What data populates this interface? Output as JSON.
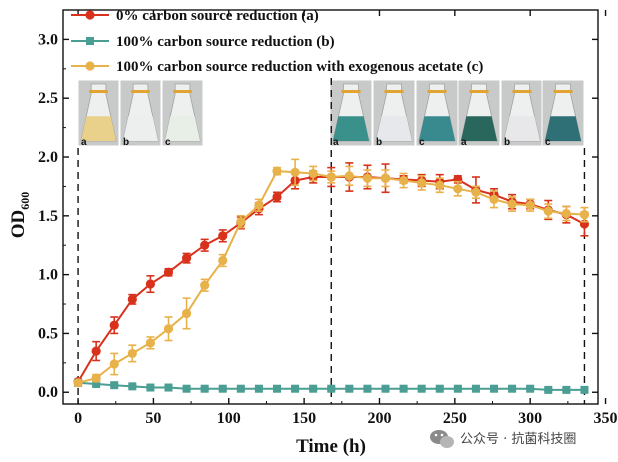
{
  "chart_data": {
    "type": "line",
    "xlabel": "Time (h)",
    "ylabel": "OD",
    "ylabel_sub": "600",
    "xlim": [
      -10,
      345
    ],
    "ylim": [
      -0.1,
      3.25
    ],
    "xticks": [
      0,
      50,
      100,
      150,
      200,
      250,
      300,
      350
    ],
    "yticks": [
      0.0,
      0.5,
      1.0,
      1.5,
      2.0,
      2.5,
      3.0
    ],
    "x_tick_labels": [
      "0",
      "50",
      "100",
      "150",
      "200",
      "250",
      "300",
      "350"
    ],
    "y_tick_labels": [
      "0.0",
      "0.5",
      "1.0",
      "1.5",
      "2.0",
      "2.5",
      "3.0"
    ],
    "legend_position": "top-left",
    "grid": false,
    "vlines_dashed_x": [
      0,
      168,
      336
    ],
    "series": [
      {
        "name": "0%  carbon source reduction (a)",
        "color": "#d8321c",
        "marker": "circle",
        "x": [
          0,
          12,
          24,
          36,
          48,
          60,
          72,
          84,
          96,
          108,
          120,
          132,
          144,
          156,
          168,
          180,
          192,
          204,
          216,
          228,
          240,
          252,
          264,
          276,
          288,
          300,
          312,
          324,
          336
        ],
        "y": [
          0.09,
          0.35,
          0.57,
          0.79,
          0.92,
          1.02,
          1.14,
          1.25,
          1.33,
          1.44,
          1.56,
          1.66,
          1.8,
          1.83,
          1.83,
          1.83,
          1.83,
          1.82,
          1.81,
          1.8,
          1.79,
          1.81,
          1.72,
          1.68,
          1.62,
          1.6,
          1.55,
          1.51,
          1.43
        ],
        "err": [
          0.02,
          0.08,
          0.07,
          0.04,
          0.07,
          0.03,
          0.04,
          0.05,
          0.05,
          0.05,
          0.05,
          0.04,
          0.07,
          0.05,
          0.08,
          0.12,
          0.1,
          0.12,
          0.03,
          0.05,
          0.06,
          0.03,
          0.11,
          0.05,
          0.06,
          0.04,
          0.08,
          0.07,
          0.1
        ]
      },
      {
        "name": "100%  carbon source reduction (b)",
        "color": "#4a9e94",
        "marker": "square",
        "x": [
          0,
          12,
          24,
          36,
          48,
          60,
          72,
          84,
          96,
          108,
          120,
          132,
          144,
          156,
          168,
          180,
          192,
          204,
          216,
          228,
          240,
          252,
          264,
          276,
          288,
          300,
          312,
          324,
          336
        ],
        "y": [
          0.08,
          0.07,
          0.06,
          0.05,
          0.04,
          0.04,
          0.03,
          0.03,
          0.03,
          0.03,
          0.03,
          0.03,
          0.03,
          0.03,
          0.03,
          0.03,
          0.03,
          0.03,
          0.03,
          0.03,
          0.03,
          0.03,
          0.03,
          0.03,
          0.03,
          0.03,
          0.02,
          0.02,
          0.02
        ],
        "err": [
          0.01,
          0.01,
          0.01,
          0.01,
          0.01,
          0.01,
          0.01,
          0.01,
          0.01,
          0.01,
          0.01,
          0.01,
          0.01,
          0.01,
          0.01,
          0.01,
          0.01,
          0.01,
          0.01,
          0.01,
          0.01,
          0.01,
          0.01,
          0.01,
          0.01,
          0.01,
          0.01,
          0.01,
          0.01
        ]
      },
      {
        "name": "100%  carbon source reduction with exogenous acetate (c)",
        "color": "#e8b24a",
        "marker": "circle",
        "x": [
          0,
          12,
          24,
          36,
          48,
          60,
          72,
          84,
          96,
          108,
          120,
          132,
          144,
          156,
          168,
          180,
          192,
          204,
          216,
          228,
          240,
          252,
          264,
          276,
          288,
          300,
          312,
          324,
          336
        ],
        "y": [
          0.08,
          0.12,
          0.24,
          0.33,
          0.42,
          0.54,
          0.67,
          0.91,
          1.12,
          1.45,
          1.59,
          1.88,
          1.87,
          1.86,
          1.83,
          1.84,
          1.82,
          1.82,
          1.8,
          1.78,
          1.76,
          1.73,
          1.7,
          1.64,
          1.6,
          1.59,
          1.54,
          1.52,
          1.51
        ],
        "err": [
          0.02,
          0.03,
          0.09,
          0.07,
          0.05,
          0.1,
          0.13,
          0.05,
          0.05,
          0.05,
          0.05,
          0.03,
          0.11,
          0.06,
          0.05,
          0.08,
          0.07,
          0.07,
          0.06,
          0.06,
          0.06,
          0.06,
          0.05,
          0.07,
          0.06,
          0.05,
          0.06,
          0.06,
          0.06
        ]
      }
    ]
  },
  "photos": {
    "left_group": {
      "letters": [
        "a",
        "b",
        "c"
      ],
      "liquid_colors": [
        "#e8cf86",
        "#eceded",
        "#e7eee5"
      ]
    },
    "right_group": {
      "letters": [
        "a",
        "b",
        "c",
        "a",
        "b",
        "c"
      ],
      "liquid_colors": [
        "#2f8a84",
        "#e5e7ea",
        "#2d8488",
        "#1e5e52",
        "#e7e7ea",
        "#24676f"
      ]
    }
  },
  "watermark": {
    "text": "公众号 · 抗菌科技圈",
    "icon": "wechat-icon"
  }
}
